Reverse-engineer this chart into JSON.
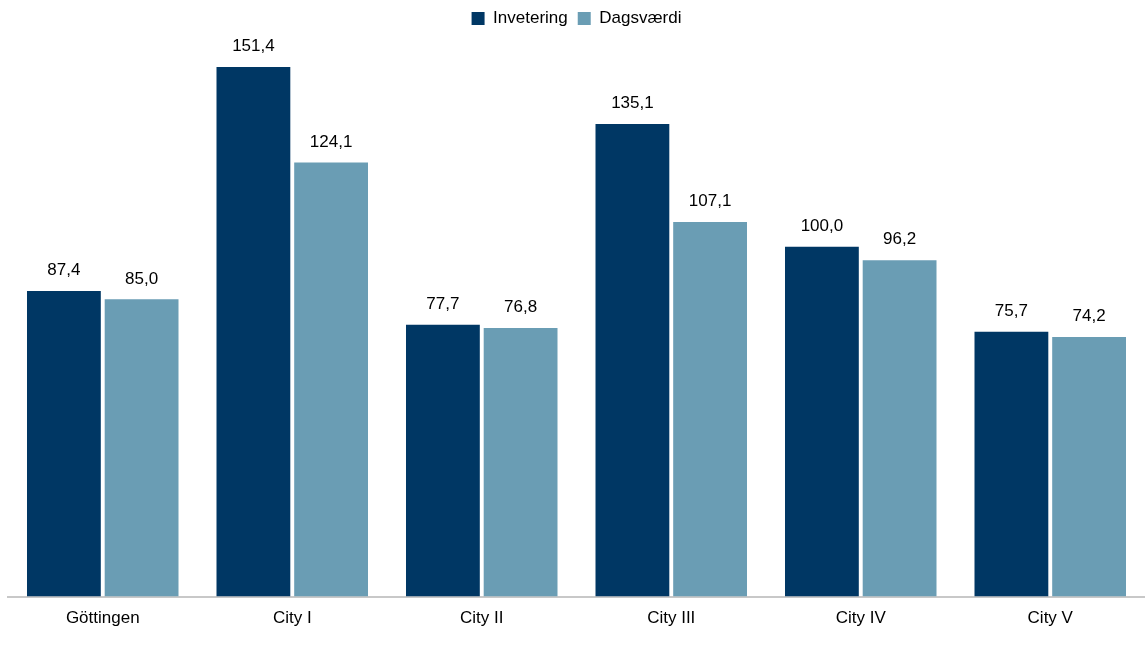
{
  "chart_data": {
    "type": "bar",
    "categories": [
      "Göttingen",
      "City I",
      "City II",
      "City III",
      "City IV",
      "City V"
    ],
    "series": [
      {
        "name": "Invetering",
        "color": "#003764",
        "values": [
          87.4,
          151.4,
          77.7,
          135.1,
          100.0,
          75.7
        ],
        "value_labels": [
          "87,4",
          "151,4",
          "77,7",
          "135,1",
          "100,0",
          "75,7"
        ]
      },
      {
        "name": "Dagsværdi",
        "color": "#6a9db4",
        "values": [
          85.0,
          124.1,
          76.8,
          107.1,
          96.2,
          74.2
        ],
        "value_labels": [
          "85,0",
          "124,1",
          "76,8",
          "107,1",
          "96,2",
          "74,2"
        ]
      }
    ],
    "legend": "top",
    "grid": false
  }
}
